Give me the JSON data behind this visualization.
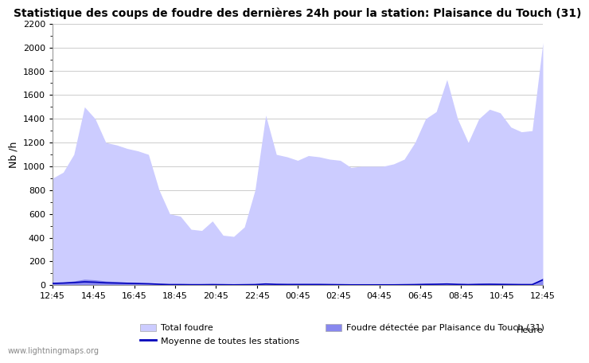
{
  "title": "Statistique des coups de foudre des dernières 24h pour la station: Plaisance du Touch (31)",
  "xlabel": "Heure",
  "ylabel": "Nb /h",
  "ylim": [
    0,
    2200
  ],
  "yticks": [
    0,
    200,
    400,
    600,
    800,
    1000,
    1200,
    1400,
    1600,
    1800,
    2000,
    2200
  ],
  "x_labels": [
    "12:45",
    "14:45",
    "16:45",
    "18:45",
    "20:45",
    "22:45",
    "00:45",
    "02:45",
    "04:45",
    "06:45",
    "08:45",
    "10:45",
    "12:45"
  ],
  "total_foudre": [
    900,
    950,
    1100,
    1500,
    1400,
    1200,
    1180,
    1150,
    1130,
    1100,
    800,
    600,
    580,
    470,
    460,
    540,
    420,
    410,
    490,
    800,
    1430,
    1100,
    1080,
    1050,
    1090,
    1080,
    1060,
    1050,
    990,
    1000,
    1000,
    1000,
    1020,
    1060,
    1200,
    1400,
    1460,
    1730,
    1400,
    1200,
    1400,
    1480,
    1450,
    1330,
    1290,
    1300,
    2040
  ],
  "foudre_detectee": [
    20,
    25,
    35,
    50,
    45,
    35,
    30,
    25,
    20,
    18,
    12,
    8,
    8,
    6,
    6,
    8,
    6,
    5,
    6,
    8,
    15,
    10,
    8,
    8,
    8,
    8,
    8,
    6,
    5,
    5,
    5,
    5,
    5,
    6,
    8,
    10,
    12,
    15,
    10,
    8,
    10,
    12,
    10,
    8,
    8,
    8,
    60
  ],
  "moyenne": [
    15,
    18,
    22,
    28,
    25,
    20,
    18,
    16,
    14,
    12,
    8,
    5,
    5,
    4,
    4,
    5,
    4,
    3,
    4,
    5,
    10,
    7,
    6,
    6,
    6,
    6,
    5,
    4,
    3,
    3,
    3,
    3,
    3,
    4,
    5,
    7,
    8,
    10,
    7,
    5,
    7,
    8,
    7,
    6,
    5,
    5,
    45
  ],
  "total_foudre_color": "#ccccff",
  "foudre_detectee_color": "#8888ee",
  "moyenne_color": "#0000bb",
  "background_color": "#ffffff",
  "grid_color": "#cccccc",
  "title_fontsize": 10,
  "watermark": "www.lightningmaps.org",
  "legend_total": "Total foudre",
  "legend_detectee": "Foudre détectée par Plaisance du Touch (31)",
  "legend_moyenne": "Moyenne de toutes les stations"
}
